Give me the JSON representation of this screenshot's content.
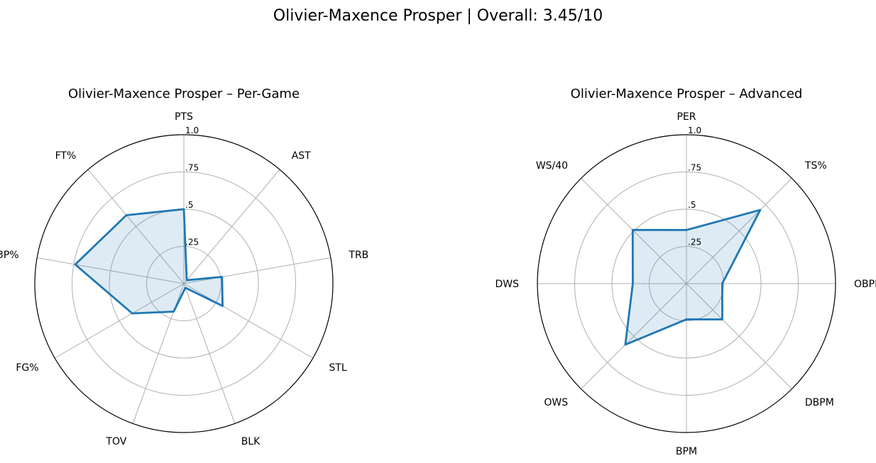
{
  "suptitle": "Olivier-Maxence Prosper | Overall: 3.45/10",
  "chart_data": [
    {
      "type": "radar",
      "title": "Olivier-Maxence Prosper – Per-Game",
      "categories": [
        "PTS",
        "AST",
        "TRB",
        "STL",
        "BLK",
        "TOV",
        "FG%",
        "3P%",
        "FT%"
      ],
      "values": [
        0.5,
        0.03,
        0.26,
        0.3,
        0.03,
        0.2,
        0.4,
        0.74,
        0.6
      ],
      "rlim": [
        0,
        1
      ],
      "rticks": [
        0.25,
        0.5,
        0.75,
        1.0
      ],
      "rtick_labels": [
        ".25",
        ".5",
        ".75",
        "1.0"
      ],
      "grid": true,
      "colors": {
        "line": "#1f77b4",
        "fill": "#1f77b4"
      }
    },
    {
      "type": "radar",
      "title": "Olivier-Maxence Prosper – Advanced",
      "categories": [
        "PER",
        "TS%",
        "OBPM",
        "DBPM",
        "BPM",
        "OWS",
        "DWS",
        "WS/40"
      ],
      "values": [
        0.36,
        0.7,
        0.24,
        0.34,
        0.24,
        0.58,
        0.36,
        0.51
      ],
      "rlim": [
        0,
        1
      ],
      "rticks": [
        0.25,
        0.5,
        0.75,
        1.0
      ],
      "rtick_labels": [
        ".25",
        ".5",
        ".75",
        "1.0"
      ],
      "grid": true,
      "colors": {
        "line": "#1f77b4",
        "fill": "#1f77b4"
      }
    }
  ]
}
